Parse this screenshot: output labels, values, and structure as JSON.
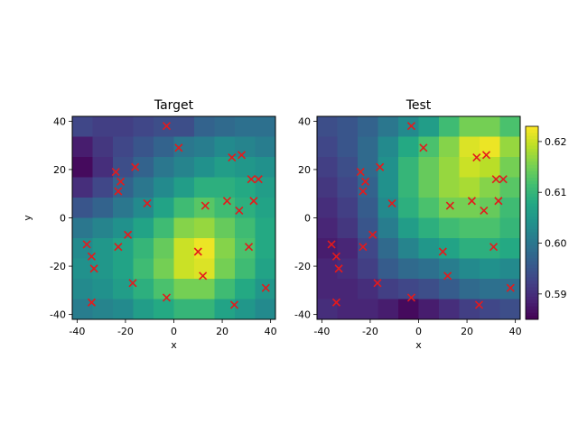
{
  "chart_data": [
    {
      "type": "heatmap",
      "title": "Target",
      "xlabel": "x",
      "ylabel": "y",
      "xlim": [
        -42,
        42
      ],
      "ylim": [
        -42,
        42
      ],
      "x_ticks": [
        -40,
        -20,
        0,
        20,
        40
      ],
      "y_ticks": [
        -40,
        -20,
        0,
        20,
        40
      ],
      "grid": false,
      "cell_edges": [
        -42,
        -33.6,
        -25.2,
        -16.8,
        -8.4,
        0,
        8.4,
        16.8,
        25.2,
        33.6,
        42
      ],
      "values_top_to_bottom": [
        [
          0.593,
          0.592,
          0.592,
          0.593,
          0.594,
          0.594,
          0.597,
          0.598,
          0.599,
          0.599
        ],
        [
          0.588,
          0.591,
          0.593,
          0.595,
          0.597,
          0.6,
          0.601,
          0.603,
          0.602,
          0.601
        ],
        [
          0.586,
          0.59,
          0.594,
          0.597,
          0.6,
          0.602,
          0.604,
          0.606,
          0.605,
          0.604
        ],
        [
          0.59,
          0.593,
          0.597,
          0.6,
          0.603,
          0.606,
          0.609,
          0.609,
          0.608,
          0.606
        ],
        [
          0.595,
          0.597,
          0.6,
          0.603,
          0.607,
          0.611,
          0.613,
          0.611,
          0.609,
          0.607
        ],
        [
          0.6,
          0.602,
          0.604,
          0.607,
          0.611,
          0.616,
          0.617,
          0.614,
          0.611,
          0.608
        ],
        [
          0.603,
          0.605,
          0.607,
          0.61,
          0.614,
          0.62,
          0.622,
          0.616,
          0.612,
          0.608
        ],
        [
          0.604,
          0.605,
          0.607,
          0.611,
          0.615,
          0.62,
          0.621,
          0.615,
          0.611,
          0.607
        ],
        [
          0.603,
          0.604,
          0.606,
          0.609,
          0.612,
          0.615,
          0.615,
          0.611,
          0.608,
          0.605
        ],
        [
          0.601,
          0.602,
          0.603,
          0.606,
          0.608,
          0.61,
          0.61,
          0.607,
          0.605,
          0.603
        ]
      ]
    },
    {
      "type": "heatmap",
      "title": "Test",
      "xlabel": "x",
      "ylabel": "",
      "xlim": [
        -42,
        42
      ],
      "ylim": [
        -42,
        42
      ],
      "x_ticks": [
        -40,
        -20,
        0,
        20,
        40
      ],
      "y_ticks": [
        -40,
        -20,
        0,
        20,
        40
      ],
      "grid": false,
      "cell_edges": [
        -42,
        -33.6,
        -25.2,
        -16.8,
        -8.4,
        0,
        8.4,
        16.8,
        25.2,
        33.6,
        42
      ],
      "values_top_to_bottom": [
        [
          0.594,
          0.595,
          0.597,
          0.6,
          0.603,
          0.606,
          0.611,
          0.615,
          0.615,
          0.612
        ],
        [
          0.593,
          0.595,
          0.598,
          0.603,
          0.608,
          0.612,
          0.616,
          0.621,
          0.622,
          0.617
        ],
        [
          0.592,
          0.594,
          0.598,
          0.604,
          0.61,
          0.614,
          0.617,
          0.62,
          0.619,
          0.615
        ],
        [
          0.591,
          0.593,
          0.597,
          0.604,
          0.61,
          0.614,
          0.617,
          0.618,
          0.616,
          0.613
        ],
        [
          0.59,
          0.592,
          0.596,
          0.603,
          0.609,
          0.612,
          0.615,
          0.615,
          0.614,
          0.611
        ],
        [
          0.589,
          0.591,
          0.595,
          0.601,
          0.606,
          0.609,
          0.611,
          0.612,
          0.612,
          0.61
        ],
        [
          0.588,
          0.589,
          0.593,
          0.598,
          0.602,
          0.605,
          0.607,
          0.609,
          0.609,
          0.608
        ],
        [
          0.589,
          0.59,
          0.592,
          0.596,
          0.598,
          0.599,
          0.601,
          0.603,
          0.604,
          0.603
        ],
        [
          0.589,
          0.589,
          0.59,
          0.592,
          0.593,
          0.594,
          0.596,
          0.598,
          0.599,
          0.599
        ],
        [
          0.59,
          0.589,
          0.589,
          0.588,
          0.586,
          0.588,
          0.59,
          0.592,
          0.593,
          0.594
        ]
      ]
    }
  ],
  "points": {
    "color": "#e41a1c",
    "marker": "x",
    "x": [
      -3,
      2,
      -24,
      24,
      28,
      -16,
      -22,
      -23,
      32,
      35,
      -11,
      13,
      22,
      33,
      27,
      -36,
      -19,
      -34,
      -23,
      -33,
      31,
      10,
      -17,
      12,
      38,
      -3,
      -34,
      25
    ],
    "y": [
      38,
      29,
      19,
      25,
      26,
      21,
      15,
      11,
      16,
      16,
      6,
      5,
      7,
      7,
      3,
      -11,
      -7,
      -16,
      -12,
      -21,
      -12,
      -14,
      -27,
      -24,
      -29,
      -33,
      -35,
      -36
    ]
  },
  "colorbar": {
    "min": 0.585,
    "max": 0.623,
    "ticks": [
      0.59,
      0.6,
      0.61,
      0.62
    ],
    "tick_labels": [
      "0.59",
      "0.60",
      "0.61",
      "0.62"
    ]
  }
}
